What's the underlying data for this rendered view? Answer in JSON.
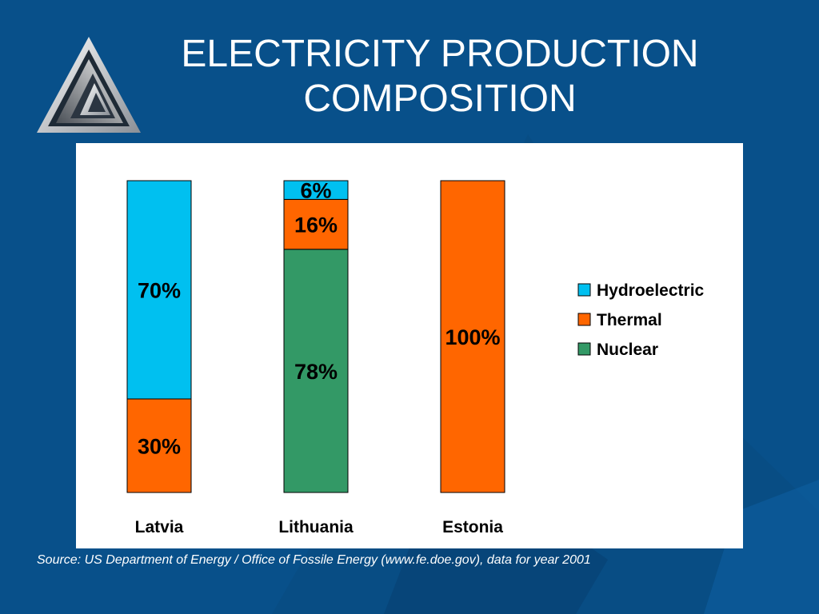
{
  "slide": {
    "title_line1": "ELECTRICITY PRODUCTION",
    "title_line2": "COMPOSITION",
    "source": "Source: US Department of Energy / Office of Fossile Energy (www.fe.doe.gov), data for year 2001"
  },
  "colors": {
    "background": "#08508a",
    "hydro": "#00c0f0",
    "thermal": "#ff6600",
    "nuclear": "#339966"
  },
  "chart_data": {
    "type": "bar",
    "stacked": true,
    "categories": [
      "Latvia",
      "Lithuania",
      "Estonia"
    ],
    "series": [
      {
        "name": "Nuclear",
        "color": "#339966",
        "values": [
          0,
          78,
          0
        ],
        "labels": [
          "",
          "78%",
          ""
        ]
      },
      {
        "name": "Thermal",
        "color": "#ff6600",
        "values": [
          30,
          16,
          100
        ],
        "labels": [
          "30%",
          "16%",
          "100%"
        ]
      },
      {
        "name": "Hydroelectric",
        "color": "#00c0f0",
        "values": [
          70,
          6,
          0
        ],
        "labels": [
          "70%",
          "6%",
          ""
        ]
      }
    ],
    "legend": [
      "Hydroelectric",
      "Thermal",
      "Nuclear"
    ],
    "legend_position": "right",
    "ylim": [
      0,
      100
    ],
    "grid": false
  }
}
